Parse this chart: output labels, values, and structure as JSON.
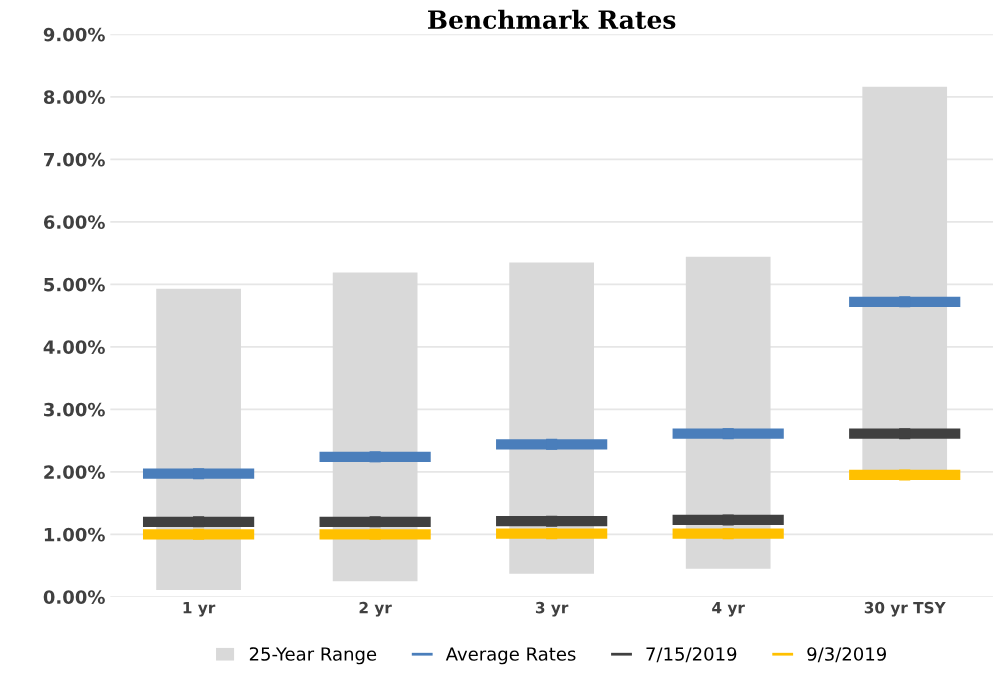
{
  "chart_data": {
    "type": "bar",
    "title": "Benchmark Rates",
    "categories": [
      "1 yr",
      "2 yr",
      "3 yr",
      "4 yr",
      "30 yr TSY"
    ],
    "series": [
      {
        "name": "25-Year Range",
        "color": "#d9d9d9",
        "base": [
          0.11,
          0.25,
          0.37,
          0.45,
          1.95
        ],
        "values": [
          4.82,
          4.94,
          4.98,
          4.99,
          6.21
        ]
      },
      {
        "name": "Average Rates",
        "type": "scatter",
        "color": "#4a7ebb",
        "values": [
          1.97,
          2.24,
          2.44,
          2.61,
          4.72
        ]
      },
      {
        "name": "7/15/2019",
        "type": "scatter",
        "color": "#404040",
        "values": [
          1.2,
          1.2,
          1.21,
          1.23,
          2.61
        ]
      },
      {
        "name": "9/3/2019",
        "type": "scatter",
        "color": "#ffc000",
        "values": [
          1.0,
          1.0,
          1.01,
          1.01,
          1.95
        ]
      }
    ],
    "ylim": [
      0,
      9
    ],
    "yticks": [
      {
        "value": 0,
        "label": "0.00%"
      },
      {
        "value": 1,
        "label": "1.00%"
      },
      {
        "value": 2,
        "label": "2.00%"
      },
      {
        "value": 3,
        "label": "3.00%"
      },
      {
        "value": 4,
        "label": "4.00%"
      },
      {
        "value": 5,
        "label": "5.00%"
      },
      {
        "value": 6,
        "label": "6.00%"
      },
      {
        "value": 7,
        "label": "7.00%"
      },
      {
        "value": 8,
        "label": "8.00%"
      },
      {
        "value": 9,
        "label": "9.00%"
      }
    ],
    "grid": "y",
    "legend": "bottom"
  }
}
